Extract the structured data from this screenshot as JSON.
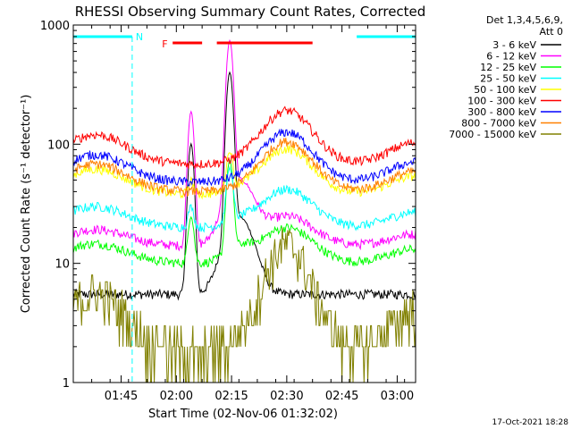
{
  "chart_data": {
    "type": "line",
    "title": "RHESSI Observing Summary Count Rates, Corrected",
    "ylabel": "Corrected Count Rate (s⁻¹ detector⁻¹)",
    "xlabel": "Start Time (02-Nov-06 01:32:02)",
    "yscale": "log",
    "ylim": [
      1,
      1000
    ],
    "xlim": [
      0,
      93
    ],
    "y_ticks": [
      {
        "v": 1,
        "label": "1"
      },
      {
        "v": 10,
        "label": "10"
      },
      {
        "v": 100,
        "label": "100"
      },
      {
        "v": 1000,
        "label": "1000"
      }
    ],
    "x_ticks": [
      {
        "t": 13,
        "label": "01:45"
      },
      {
        "t": 28,
        "label": "02:00"
      },
      {
        "t": 43,
        "label": "02:15"
      },
      {
        "t": 58,
        "label": "02:30"
      },
      {
        "t": 73,
        "label": "02:45"
      },
      {
        "t": 88,
        "label": "03:00"
      }
    ],
    "legend_header": [
      "Det 1,3,4,5,6,9,",
      "Att 0"
    ],
    "legend_position": "right",
    "series": [
      {
        "name": "3 - 6 keV",
        "color": "#000000",
        "base": 5.5,
        "orbit": 0.0,
        "spike": 380
      },
      {
        "name": "6 - 12 keV",
        "color": "#ff00ff",
        "base": 14,
        "orbit": 0.25,
        "spike": 700
      },
      {
        "name": "12 - 25 keV",
        "color": "#00ff00",
        "base": 10,
        "orbit": 0.3,
        "spike": 60
      },
      {
        "name": "25 - 50 keV",
        "color": "#00ffff",
        "base": 20,
        "orbit": 0.32,
        "spike": 40
      },
      {
        "name": "50 - 100 keV",
        "color": "#ffff00",
        "base": 38,
        "orbit": 0.38,
        "spike": 45
      },
      {
        "name": "100 - 300 keV",
        "color": "#ff0000",
        "base": 68,
        "orbit": 0.45,
        "spike": 0
      },
      {
        "name": "300 - 800 keV",
        "color": "#0000ff",
        "base": 48,
        "orbit": 0.42,
        "spike": 0
      },
      {
        "name": "800 - 7000 keV",
        "color": "#ff8000",
        "base": 40,
        "orbit": 0.42,
        "spike": 0
      },
      {
        "name": "7000 - 15000 keV",
        "color": "#808000",
        "base": 1.8,
        "orbit": 0.9,
        "spike": 0
      }
    ],
    "night_markers": [
      {
        "start": 0,
        "end": 16,
        "label": "N"
      },
      {
        "start": 77,
        "end": 93,
        "label": ""
      }
    ],
    "flare_markers": [
      {
        "start": 27,
        "end": 35,
        "label": "F"
      },
      {
        "start": 39,
        "end": 65,
        "label": ""
      }
    ],
    "footer_date": "17-Oct-2021 18:28"
  }
}
